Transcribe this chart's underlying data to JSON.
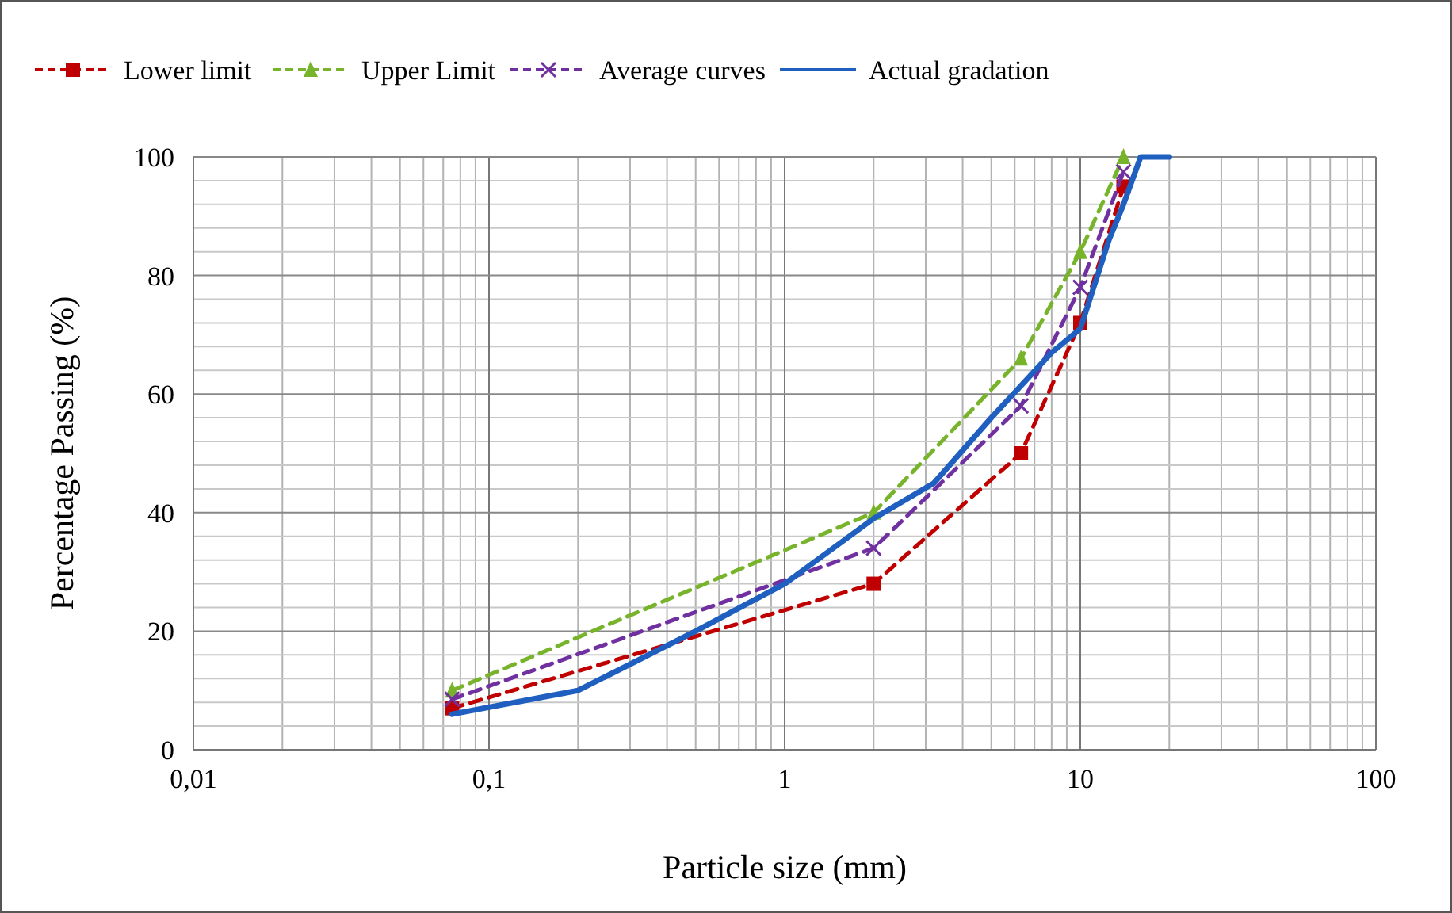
{
  "chart_data": {
    "type": "line",
    "xlabel": "Particle size (mm)",
    "ylabel": "Percentage Passing  (%)",
    "log": "x",
    "xlim": [
      0.01,
      100
    ],
    "xticks": [
      {
        "value": 0.01,
        "label": "0,01"
      },
      {
        "value": 0.1,
        "label": "0,1"
      },
      1,
      10,
      100
    ],
    "ylim": [
      0,
      100
    ],
    "yticks": [
      0,
      20,
      40,
      60,
      80,
      100
    ],
    "grid": true,
    "legend": "top",
    "series": [
      {
        "name": "Lower limit",
        "color": "#c00000",
        "marker": "square",
        "line_style": "dashed",
        "x": [
          0.075,
          2,
          6.3,
          10,
          14
        ],
        "values": [
          7,
          28,
          50,
          72,
          95
        ]
      },
      {
        "name": "Upper Limit",
        "color": "#77b32b",
        "marker": "triangle",
        "line_style": "dashed",
        "x": [
          0.075,
          2,
          6.3,
          10,
          14
        ],
        "values": [
          10,
          40,
          66,
          84,
          100
        ]
      },
      {
        "name": "Average curves",
        "color": "#7030a0",
        "marker": "cross",
        "line_style": "dashed",
        "x": [
          0.075,
          2,
          6.3,
          10,
          14
        ],
        "values": [
          8.5,
          34,
          58,
          78,
          97.5
        ]
      },
      {
        "name": "Actual gradation",
        "color": "#1f5fbf",
        "marker": "none",
        "line_style": "solid",
        "x": [
          0.075,
          0.2,
          0.5,
          1,
          2,
          3.2,
          5,
          8,
          10,
          12.5,
          14,
          16,
          20
        ],
        "values": [
          6,
          10,
          20,
          28,
          39,
          45,
          56,
          67,
          71,
          86,
          92,
          100,
          100
        ]
      }
    ]
  }
}
